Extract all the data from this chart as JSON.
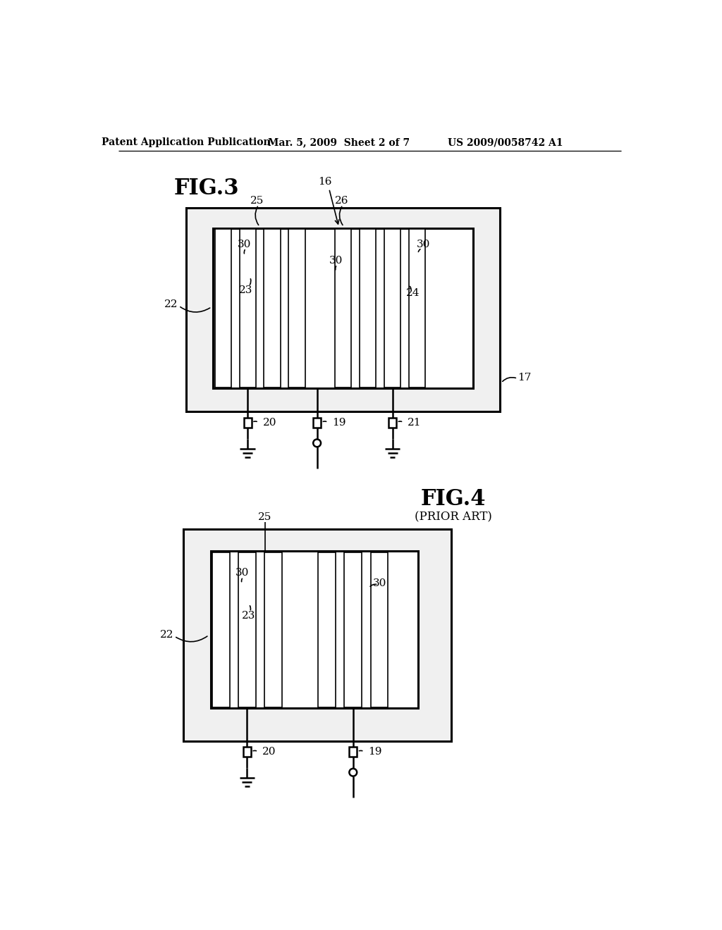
{
  "bg_color": "#ffffff",
  "header_left": "Patent Application Publication",
  "header_mid": "Mar. 5, 2009  Sheet 2 of 7",
  "header_right": "US 2009/0058742 A1",
  "fig3_title": "FIG.3",
  "fig4_title": "FIG.4",
  "fig4_subtitle": "(PRIOR ART)",
  "lc": "#000000"
}
